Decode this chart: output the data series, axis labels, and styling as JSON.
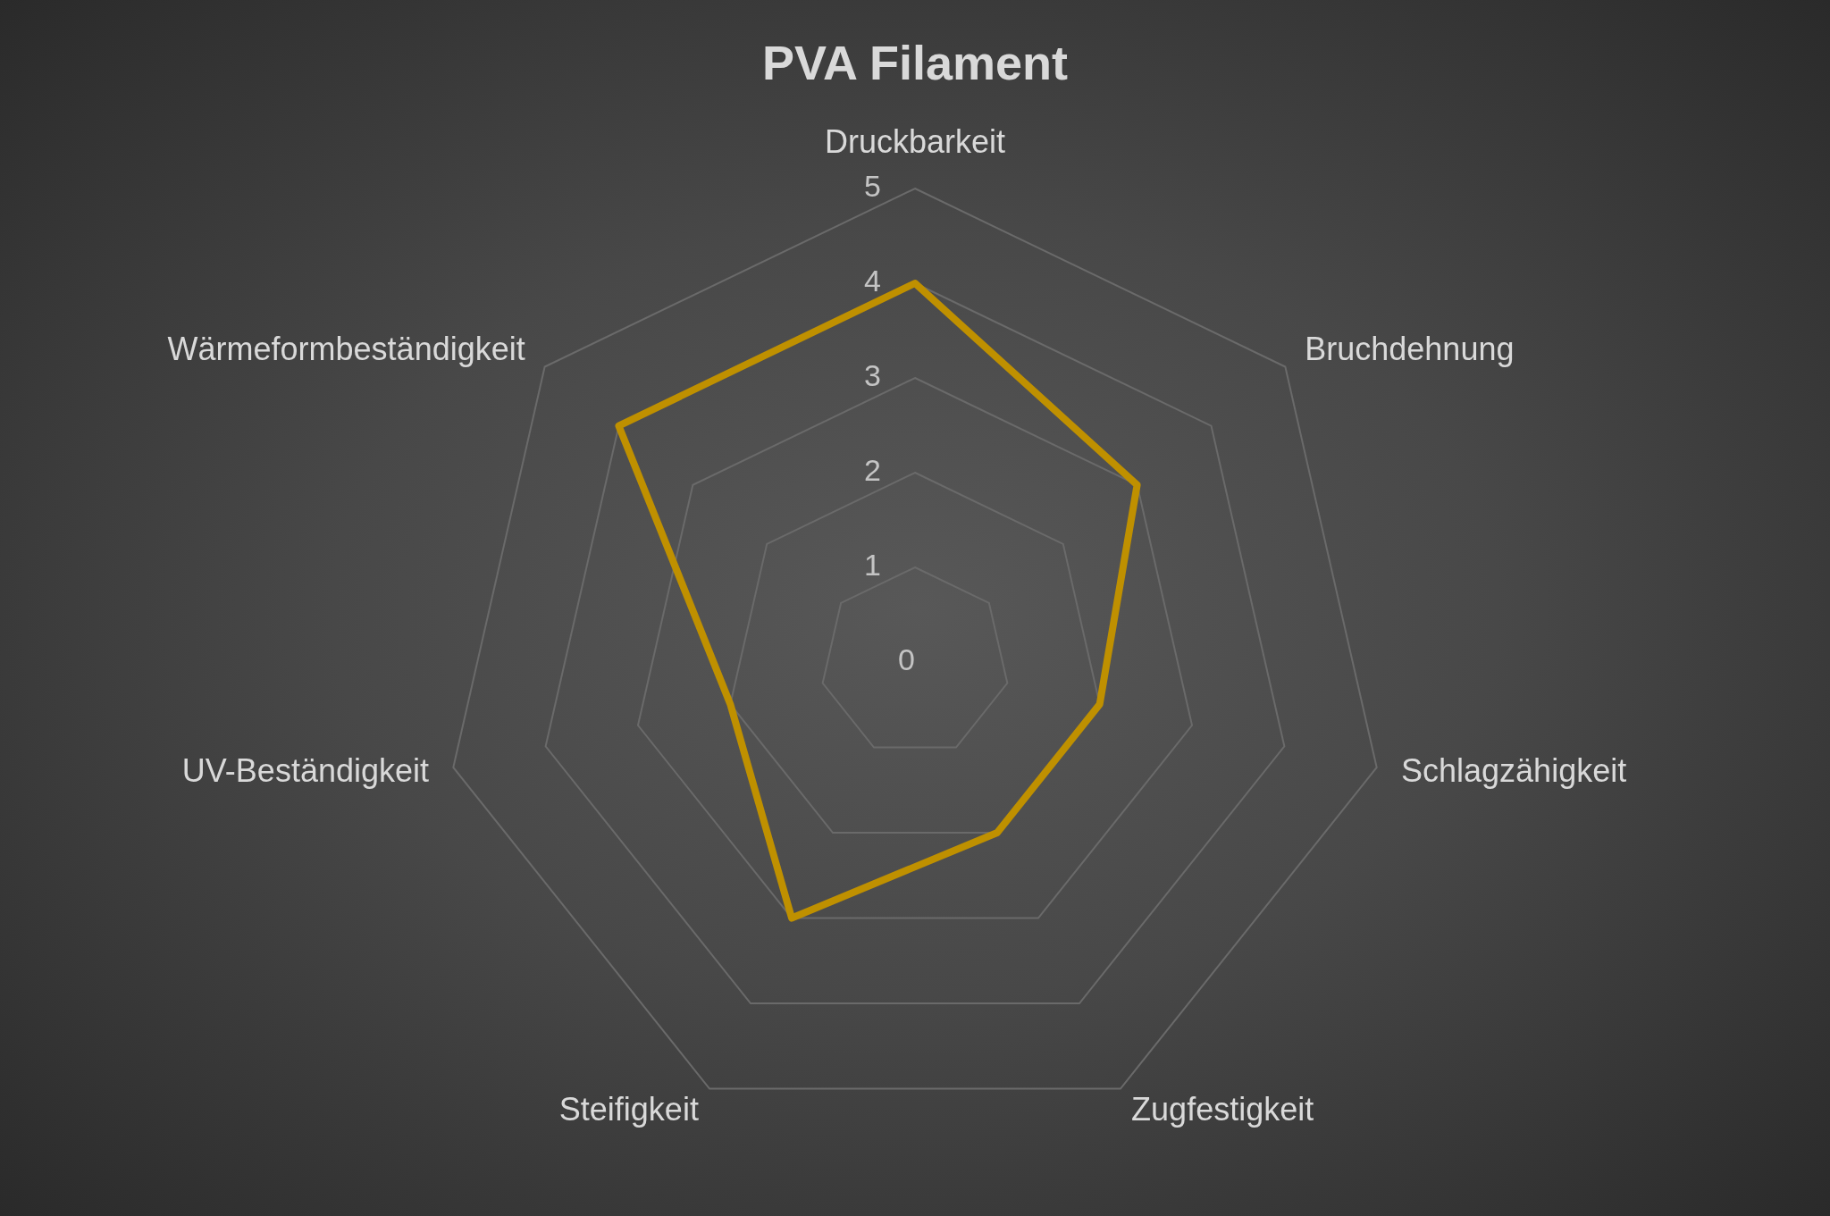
{
  "chart_data": {
    "type": "radar",
    "title": "PVA Filament",
    "categories": [
      "Druckbarkeit",
      "Bruchdehnung",
      "Schlagzähigkeit",
      "Zugfestigkeit",
      "Steifigkeit",
      "UV-Beständigkeit",
      "Wärmeformbeständigkeit"
    ],
    "series": [
      {
        "color": "#bf9000",
        "values": [
          4,
          3,
          2,
          2,
          3,
          2,
          4
        ]
      }
    ],
    "ylim": [
      0,
      5
    ],
    "yticks": [
      0,
      1,
      2,
      3,
      4,
      5
    ],
    "grid": true,
    "marker": "none",
    "line_style": "solid"
  }
}
